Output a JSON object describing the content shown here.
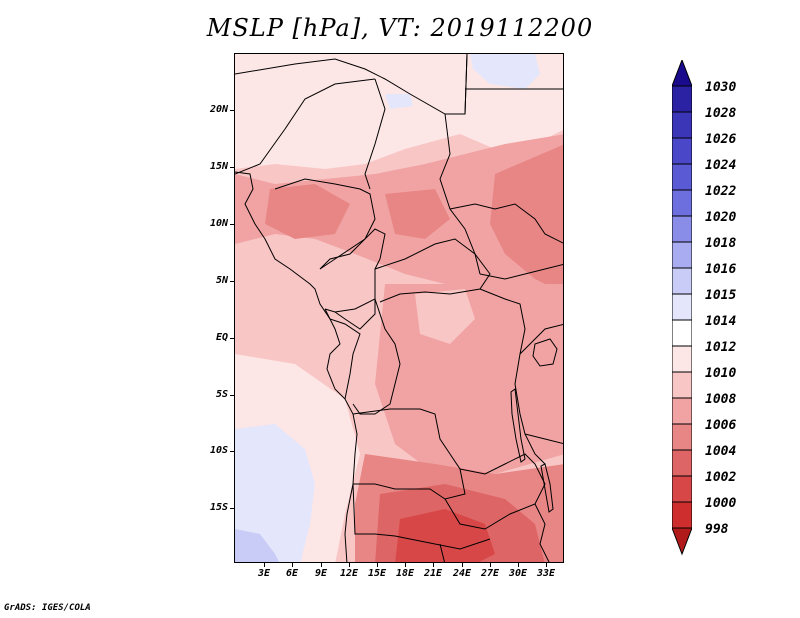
{
  "title": "MSLP [hPa], VT: 2019112200",
  "credit": "GrADS: IGES/COLA",
  "lat_labels": [
    "20N",
    "15N",
    "10N",
    "5N",
    "EQ",
    "5S",
    "10S",
    "15S"
  ],
  "lon_labels": [
    "3E",
    "6E",
    "9E",
    "12E",
    "15E",
    "18E",
    "21E",
    "24E",
    "27E",
    "30E",
    "33E"
  ],
  "colorbar": {
    "levels": [
      "1030",
      "1028",
      "1026",
      "1024",
      "1022",
      "1020",
      "1018",
      "1016",
      "1015",
      "1014",
      "1012",
      "1010",
      "1008",
      "1006",
      "1004",
      "1002",
      "1000",
      "998"
    ],
    "colors": [
      "#1a0a8c",
      "#2b22a3",
      "#3b35b8",
      "#4a47c8",
      "#5a5ad4",
      "#6e6fdf",
      "#8a8de8",
      "#a9acf0",
      "#c8ccf6",
      "#e4e6fb",
      "#ffffff",
      "#fde6e6",
      "#f9c6c6",
      "#f1a3a3",
      "#e88686",
      "#de6565",
      "#d84747",
      "#cf2e2e",
      "#b11a1a"
    ]
  },
  "map": {
    "field_colors": {
      "p1016": "#c8ccf6",
      "p1015": "#e4e6fb",
      "p1014": "#fde6e6",
      "p1012": "#f9c6c6",
      "p1010": "#f1a3a3",
      "p1008": "#e88686",
      "p1006": "#de6565",
      "p1004": "#d84747",
      "ocean": "#ffffff"
    }
  }
}
